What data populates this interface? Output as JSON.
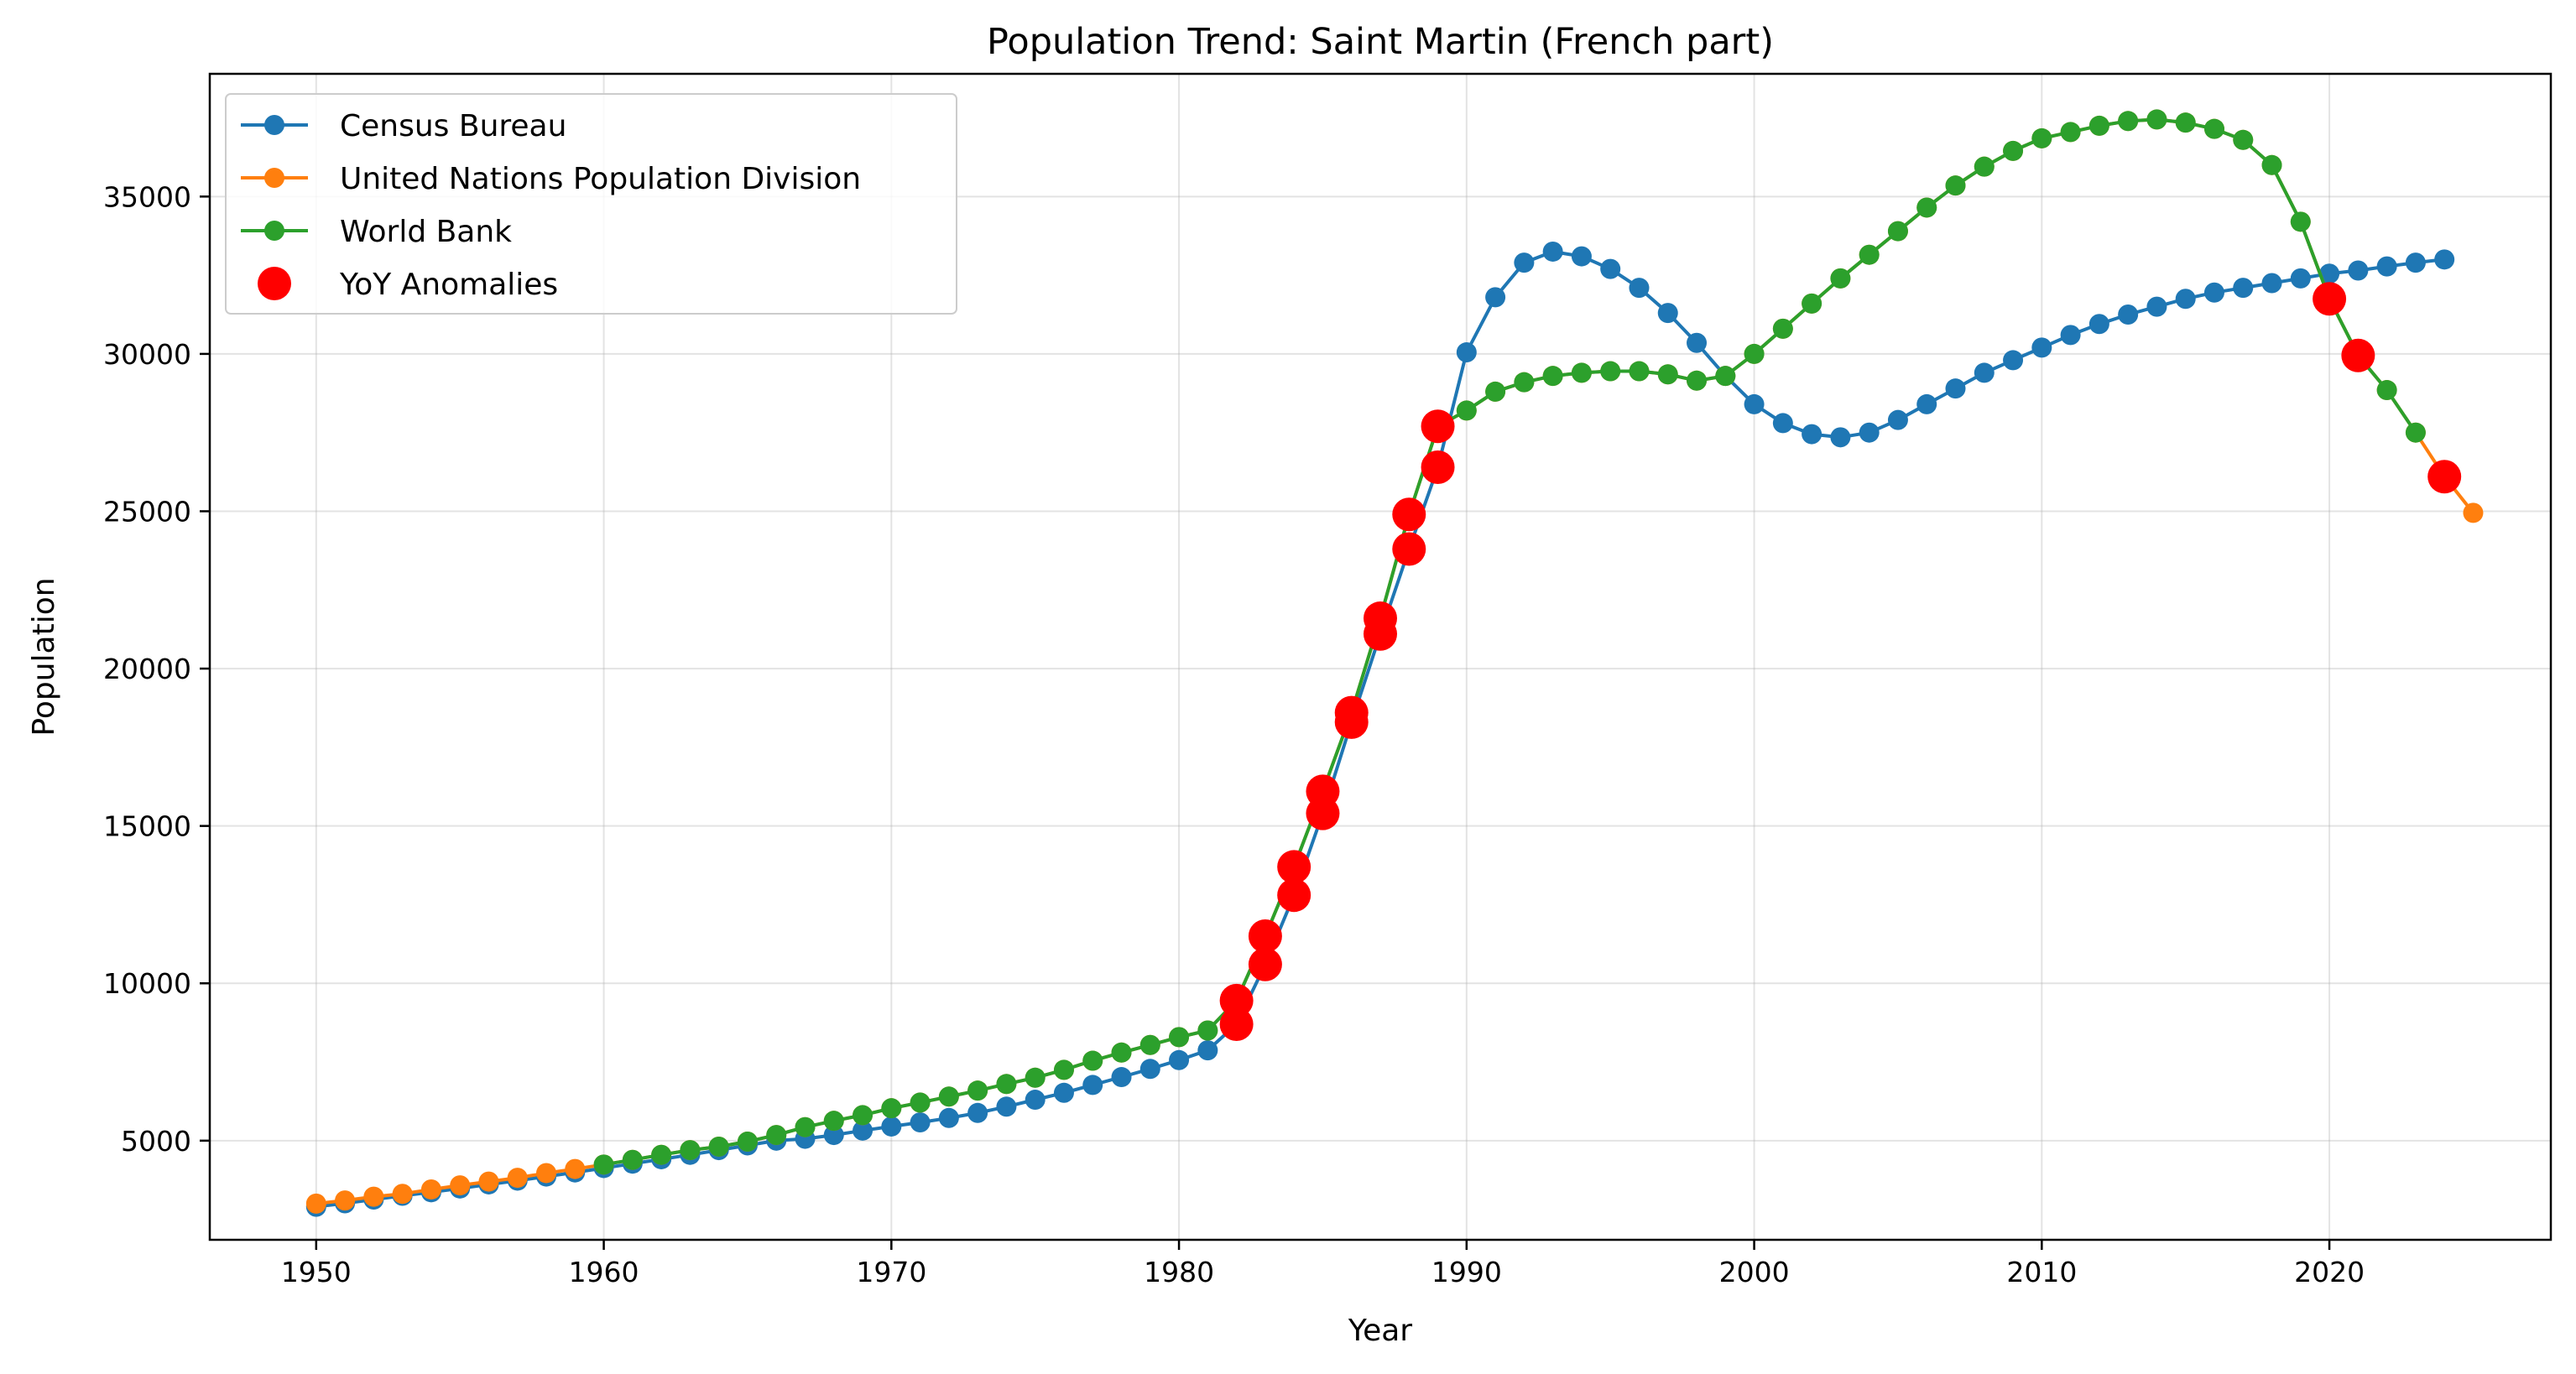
{
  "chart_data": {
    "type": "line",
    "title": "Population Trend: Saint Martin (French part)",
    "xlabel": "Year",
    "ylabel": "Population",
    "xlim": [
      1946.3,
      2027.7
    ],
    "ylim": [
      1850,
      38900
    ],
    "xticks": [
      1950,
      1960,
      1970,
      1980,
      1990,
      2000,
      2010,
      2020
    ],
    "yticks": [
      5000,
      10000,
      15000,
      20000,
      25000,
      30000,
      35000
    ],
    "grid": true,
    "legend_position": "top-left",
    "series": [
      {
        "name": "Census Bureau",
        "color": "#1f77b4",
        "x": [
          1950,
          1951,
          1952,
          1953,
          1954,
          1955,
          1956,
          1957,
          1958,
          1959,
          1960,
          1961,
          1962,
          1963,
          1964,
          1965,
          1966,
          1967,
          1968,
          1969,
          1970,
          1971,
          1972,
          1973,
          1974,
          1975,
          1976,
          1977,
          1978,
          1979,
          1980,
          1981,
          1982,
          1983,
          1984,
          1985,
          1986,
          1987,
          1988,
          1989,
          1990,
          1991,
          1992,
          1993,
          1994,
          1995,
          1996,
          1997,
          1998,
          1999,
          2000,
          2001,
          2002,
          2003,
          2004,
          2005,
          2006,
          2007,
          2008,
          2009,
          2010,
          2011,
          2012,
          2013,
          2014,
          2015,
          2016,
          2017,
          2018,
          2019,
          2020,
          2021,
          2022,
          2023,
          2024
        ],
        "y": [
          2900,
          3010,
          3130,
          3250,
          3360,
          3480,
          3610,
          3730,
          3860,
          3990,
          4130,
          4270,
          4410,
          4550,
          4700,
          4850,
          5000,
          5060,
          5180,
          5320,
          5450,
          5580,
          5720,
          5880,
          6080,
          6300,
          6520,
          6770,
          7020,
          7280,
          7560,
          7870,
          8700,
          10600,
          12800,
          15400,
          18300,
          21100,
          23800,
          26400,
          30050,
          31800,
          32900,
          33250,
          33100,
          32700,
          32100,
          31300,
          30350,
          29300,
          28400,
          27800,
          27450,
          27350,
          27500,
          27900,
          28400,
          28900,
          29400,
          29800,
          30200,
          30600,
          30950,
          31250,
          31500,
          31750,
          31950,
          32100,
          32250,
          32400,
          32550,
          32650,
          32780,
          32900,
          33000
        ]
      },
      {
        "name": "United Nations Population Division",
        "color": "#ff7f0e",
        "x": [
          1950,
          1951,
          1952,
          1953,
          1954,
          1955,
          1956,
          1957,
          1958,
          1959,
          1960,
          1961,
          1962,
          1963,
          1964,
          1965,
          1966,
          1967,
          1968,
          1969,
          1970,
          1971,
          1972,
          1973,
          1974,
          1975,
          1976,
          1977,
          1978,
          1979,
          1980,
          1981,
          1982,
          1983,
          1984,
          1985,
          1986,
          1987,
          1988,
          1989,
          1990,
          1991,
          1992,
          1993,
          1994,
          1995,
          1996,
          1997,
          1998,
          1999,
          2000,
          2001,
          2002,
          2003,
          2004,
          2005,
          2006,
          2007,
          2008,
          2009,
          2010,
          2011,
          2012,
          2013,
          2014,
          2015,
          2016,
          2017,
          2018,
          2019,
          2020,
          2021,
          2022,
          2023,
          2024,
          2025
        ],
        "y": [
          3000,
          3100,
          3220,
          3310,
          3450,
          3580,
          3700,
          3820,
          3970,
          4100,
          4240,
          4390,
          4550,
          4700,
          4810,
          4970,
          5180,
          5430,
          5630,
          5810,
          6030,
          6210,
          6400,
          6590,
          6800,
          7000,
          7250,
          7540,
          7800,
          8040,
          8290,
          8500,
          9450,
          11500,
          13700,
          16100,
          18600,
          21600,
          24900,
          27700,
          28200,
          28800,
          29100,
          29300,
          29400,
          29450,
          29450,
          29350,
          29150,
          29300,
          30000,
          30800,
          31600,
          32400,
          33150,
          33900,
          34650,
          35350,
          35950,
          36450,
          36850,
          37050,
          37250,
          37400,
          37450,
          37350,
          37150,
          36800,
          36000,
          34200,
          31750,
          29950,
          28850,
          27500,
          26100,
          24950
        ]
      },
      {
        "name": "World Bank",
        "color": "#2ca02c",
        "x": [
          1960,
          1961,
          1962,
          1963,
          1964,
          1965,
          1966,
          1967,
          1968,
          1969,
          1970,
          1971,
          1972,
          1973,
          1974,
          1975,
          1976,
          1977,
          1978,
          1979,
          1980,
          1981,
          1982,
          1983,
          1984,
          1985,
          1986,
          1987,
          1988,
          1989,
          1990,
          1991,
          1992,
          1993,
          1994,
          1995,
          1996,
          1997,
          1998,
          1999,
          2000,
          2001,
          2002,
          2003,
          2004,
          2005,
          2006,
          2007,
          2008,
          2009,
          2010,
          2011,
          2012,
          2013,
          2014,
          2015,
          2016,
          2017,
          2018,
          2019,
          2020,
          2021,
          2022,
          2023
        ],
        "y": [
          4240,
          4390,
          4550,
          4700,
          4810,
          4970,
          5180,
          5430,
          5630,
          5810,
          6030,
          6210,
          6400,
          6590,
          6800,
          7000,
          7250,
          7540,
          7800,
          8040,
          8290,
          8500,
          9450,
          11500,
          13700,
          16100,
          18600,
          21600,
          24900,
          27700,
          28200,
          28800,
          29100,
          29300,
          29400,
          29450,
          29450,
          29350,
          29150,
          29300,
          30000,
          30800,
          31600,
          32400,
          33150,
          33900,
          34650,
          35350,
          35950,
          36450,
          36850,
          37050,
          37250,
          37400,
          37450,
          37350,
          37150,
          36800,
          36000,
          34200,
          31750,
          29950,
          28850,
          27500
        ]
      }
    ],
    "anomalies": {
      "name": "YoY Anomalies",
      "color": "#ff0000",
      "points": [
        [
          1982,
          9450
        ],
        [
          1982,
          8700
        ],
        [
          1983,
          11500
        ],
        [
          1983,
          10600
        ],
        [
          1984,
          13700
        ],
        [
          1984,
          12800
        ],
        [
          1985,
          16100
        ],
        [
          1985,
          15400
        ],
        [
          1986,
          18600
        ],
        [
          1986,
          18300
        ],
        [
          1987,
          21600
        ],
        [
          1987,
          21100
        ],
        [
          1988,
          24900
        ],
        [
          1988,
          23800
        ],
        [
          1989,
          27700
        ],
        [
          1989,
          26400
        ],
        [
          2020,
          31750
        ],
        [
          2021,
          29950
        ],
        [
          2024,
          26100
        ]
      ]
    }
  }
}
